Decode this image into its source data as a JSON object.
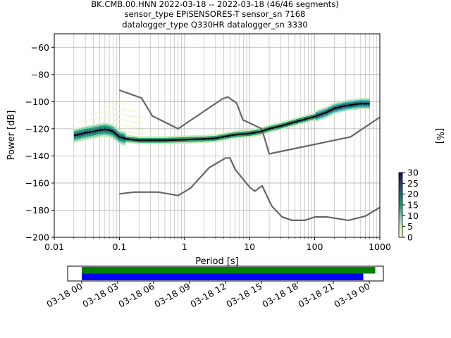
{
  "title": {
    "line1": "BK.CMB.00.HNN   2022-03-18 -- 2022-03-18  (46/46 segments)",
    "line2": "sensor_type EPISENSORES-T sensor_sn 7168",
    "line3": "datalogger_type Q330HR datalogger_sn 3330"
  },
  "colors": {
    "model_line": "#666666",
    "mode_line": "#000000",
    "coverage_green": "#008000",
    "coverage_blue": "#0000ff",
    "grid": "#b0b0b0"
  },
  "chart_data": [
    {
      "type": "heatmap",
      "xlabel": "Period [s]",
      "ylabel": "Power [dB]",
      "xscale": "log",
      "xlim": [
        0.01,
        1000
      ],
      "ylim": [
        -200,
        -50
      ],
      "x_ticks": [
        0.01,
        0.1,
        1,
        10,
        100,
        1000
      ],
      "x_tick_labels": [
        "0.01",
        "0.1",
        "1",
        "10",
        "100",
        "1000"
      ],
      "y_ticks": [
        -200,
        -180,
        -160,
        -140,
        -120,
        -100,
        -80,
        -60
      ],
      "y_tick_labels": [
        "−200",
        "−180",
        "−160",
        "−140",
        "−120",
        "−100",
        "−80",
        "−60"
      ],
      "grid": true,
      "colorbar": {
        "label": "[%]",
        "ticks": [
          0,
          5,
          10,
          15,
          20,
          25,
          30
        ],
        "tick_labels": [
          "0",
          "5",
          "10",
          "15",
          "20",
          "25",
          "30"
        ],
        "range": [
          0,
          30
        ]
      },
      "series": [
        {
          "role": "high_noise_model",
          "x": [
            0.1,
            0.22,
            0.32,
            0.8,
            3.8,
            4.6,
            6.3,
            7.9,
            15.4,
            20,
            354.8,
            1000
          ],
          "y": [
            -91.5,
            -97.4,
            -110.5,
            -120,
            -98,
            -96.5,
            -101,
            -113.5,
            -120,
            -138.5,
            -126,
            -111.5
          ]
        },
        {
          "role": "low_noise_model",
          "x": [
            0.1,
            0.17,
            0.4,
            0.8,
            1.24,
            2.4,
            4.3,
            5.0,
            6.0,
            10,
            12,
            15.6,
            21.9,
            31.6,
            45,
            70,
            101,
            154,
            328,
            600,
            1000
          ],
          "y": [
            -168,
            -166.7,
            -166.7,
            -169.2,
            -163.7,
            -148.6,
            -141.5,
            -141.5,
            -150,
            -163,
            -166,
            -162,
            -177,
            -185,
            -187.5,
            -187.5,
            -185,
            -185,
            -187.5,
            -184.4,
            -178
          ]
        },
        {
          "role": "mode",
          "x": [
            0.02,
            0.025,
            0.03,
            0.04,
            0.05,
            0.06,
            0.07,
            0.08,
            0.1,
            0.13,
            0.2,
            0.3,
            0.5,
            1,
            2,
            3,
            5,
            7,
            10,
            15,
            20,
            30,
            50,
            70,
            100,
            150,
            200,
            300,
            500,
            700
          ],
          "y": [
            -125,
            -124,
            -123,
            -122,
            -121,
            -120.5,
            -121,
            -122,
            -126,
            -127.5,
            -128.5,
            -128.5,
            -128.5,
            -128,
            -127.5,
            -127,
            -125,
            -124,
            -123.5,
            -122,
            -120,
            -118,
            -115,
            -113,
            -111,
            -108,
            -105,
            -103,
            -101.5,
            -101.5
          ]
        }
      ]
    },
    {
      "type": "bar",
      "x_tick_labels": [
        "03-18 00",
        "03-18 03",
        "03-18 06",
        "03-18 09",
        "03-18 12",
        "03-18 15",
        "03-18 18",
        "03-18 21",
        "03-19 00"
      ],
      "series": [
        {
          "color": "green",
          "start": "03-18 00:00",
          "end": "03-19 00:30"
        },
        {
          "color": "blue",
          "start": "03-18 00:00",
          "end": "03-18 23:30"
        }
      ]
    }
  ]
}
